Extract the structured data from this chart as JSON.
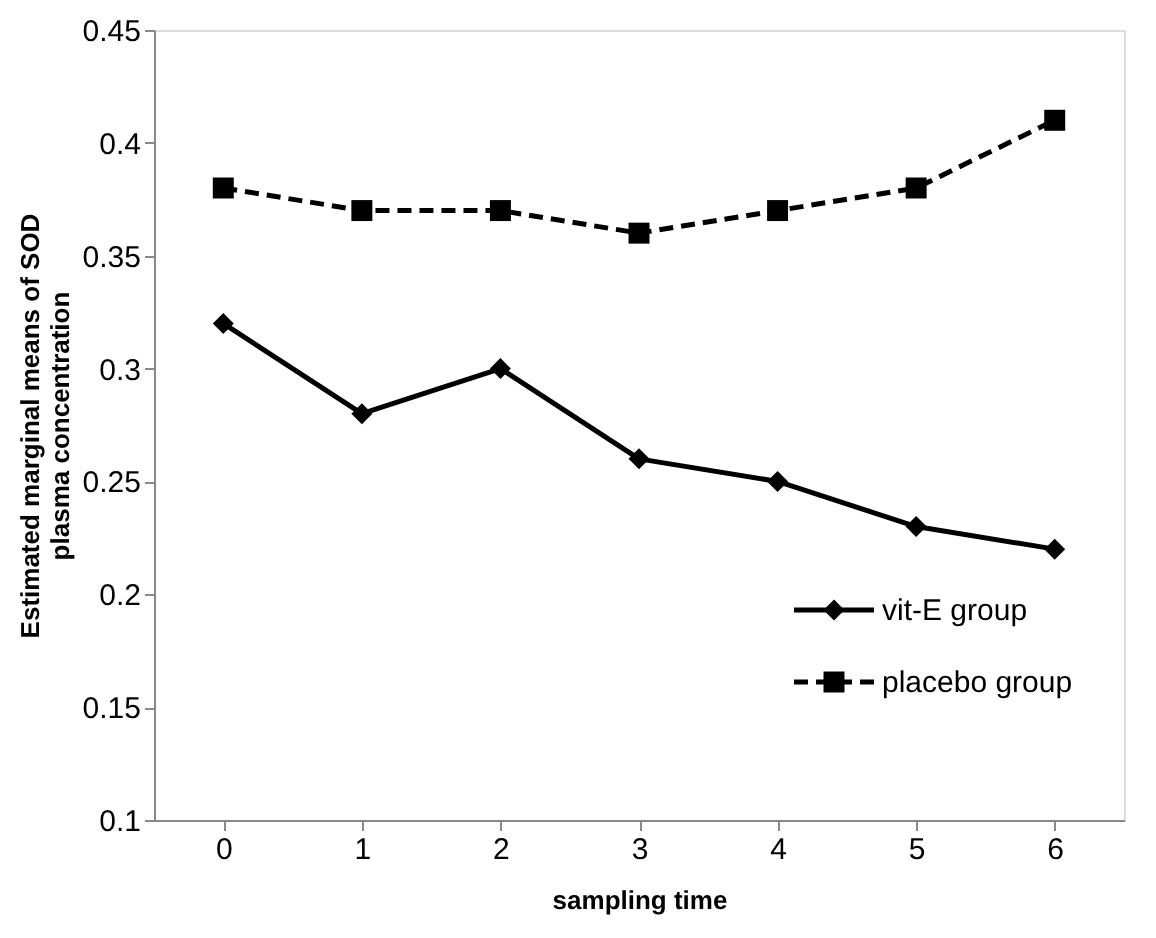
{
  "chart_data": {
    "type": "line",
    "xlabel": "sampling time",
    "ylabel": "Estimated marginal means of SOD plasma concentration",
    "categories": [
      "0",
      "1",
      "2",
      "3",
      "4",
      "5",
      "6"
    ],
    "series": [
      {
        "name": "vit-E group",
        "color": "#000000",
        "marker": "diamond",
        "line_style": "solid",
        "values": [
          0.32,
          0.28,
          0.3,
          0.26,
          0.25,
          0.23,
          0.22
        ]
      },
      {
        "name": "placebo group",
        "color": "#000000",
        "marker": "square",
        "line_style": "dashed",
        "values": [
          0.38,
          0.37,
          0.37,
          0.36,
          0.37,
          0.38,
          0.41
        ]
      }
    ],
    "ylim": [
      0.1,
      0.45
    ],
    "yticks": [
      0.1,
      0.15,
      0.2,
      0.25,
      0.3,
      0.35,
      0.4,
      0.45
    ],
    "grid": false,
    "legend": "bottom right"
  }
}
